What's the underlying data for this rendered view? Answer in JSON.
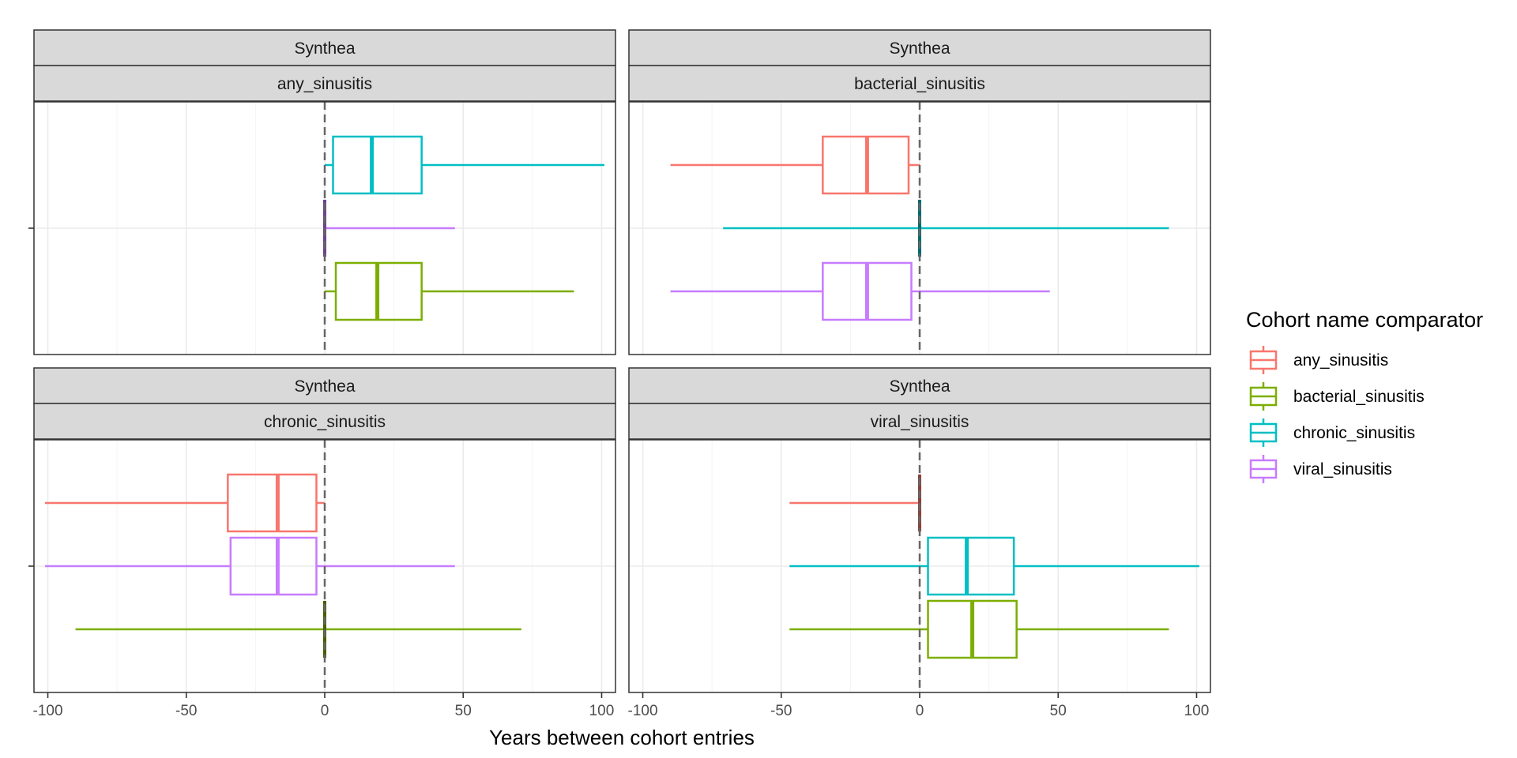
{
  "chart_data": {
    "type": "boxplot",
    "xlabel": "Years between cohort entries",
    "xlim": [
      -105,
      105
    ],
    "xticks": [
      -100,
      -50,
      0,
      50,
      100
    ],
    "xtick_labels": [
      "-100",
      "-50",
      "0",
      "50",
      "100"
    ],
    "reference_line_x": 0,
    "grid": true,
    "legend": {
      "title": "Cohort name comparator",
      "placement": "right",
      "entries": [
        {
          "name": "any_sinusitis",
          "color": "#F8766D"
        },
        {
          "name": "bacterial_sinusitis",
          "color": "#7CAE00"
        },
        {
          "name": "chronic_sinusitis",
          "color": "#00BFC4"
        },
        {
          "name": "viral_sinusitis",
          "color": "#C77CFF"
        }
      ]
    },
    "panels": [
      {
        "database": "Synthea",
        "cohort": "any_sinusitis",
        "boxes": [
          {
            "comparator": "chronic_sinusitis",
            "color": "#00BFC4",
            "min": 0,
            "q1": 3,
            "median": 17,
            "q3": 35,
            "max": 101
          },
          {
            "comparator": "viral_sinusitis",
            "color": "#C77CFF",
            "min": 0,
            "q1": 0,
            "median": 0,
            "q3": 0,
            "max": 47
          },
          {
            "comparator": "bacterial_sinusitis",
            "color": "#7CAE00",
            "min": 0,
            "q1": 4,
            "median": 19,
            "q3": 35,
            "max": 90
          }
        ]
      },
      {
        "database": "Synthea",
        "cohort": "bacterial_sinusitis",
        "boxes": [
          {
            "comparator": "any_sinusitis",
            "color": "#F8766D",
            "min": -90,
            "q1": -35,
            "median": -19,
            "q3": -4,
            "max": 0
          },
          {
            "comparator": "chronic_sinusitis",
            "color": "#00BFC4",
            "min": -71,
            "q1": 0,
            "median": 0,
            "q3": 0,
            "max": 90
          },
          {
            "comparator": "viral_sinusitis",
            "color": "#C77CFF",
            "min": -90,
            "q1": -35,
            "median": -19,
            "q3": -3,
            "max": 47
          }
        ]
      },
      {
        "database": "Synthea",
        "cohort": "chronic_sinusitis",
        "boxes": [
          {
            "comparator": "any_sinusitis",
            "color": "#F8766D",
            "min": -101,
            "q1": -35,
            "median": -17,
            "q3": -3,
            "max": 0
          },
          {
            "comparator": "viral_sinusitis",
            "color": "#C77CFF",
            "min": -101,
            "q1": -34,
            "median": -17,
            "q3": -3,
            "max": 47
          },
          {
            "comparator": "bacterial_sinusitis",
            "color": "#7CAE00",
            "min": -90,
            "q1": 0,
            "median": 0,
            "q3": 0,
            "max": 71
          }
        ]
      },
      {
        "database": "Synthea",
        "cohort": "viral_sinusitis",
        "boxes": [
          {
            "comparator": "any_sinusitis",
            "color": "#F8766D",
            "min": -47,
            "q1": 0,
            "median": 0,
            "q3": 0,
            "max": 0
          },
          {
            "comparator": "chronic_sinusitis",
            "color": "#00BFC4",
            "min": -47,
            "q1": 3,
            "median": 17,
            "q3": 34,
            "max": 101
          },
          {
            "comparator": "bacterial_sinusitis",
            "color": "#7CAE00",
            "min": -47,
            "q1": 3,
            "median": 19,
            "q3": 35,
            "max": 90
          }
        ]
      }
    ]
  }
}
